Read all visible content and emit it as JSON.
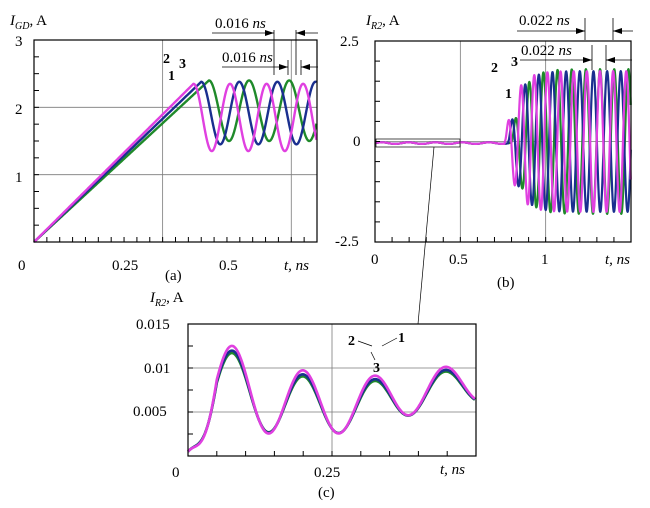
{
  "colors": {
    "c1": "#e040e0",
    "c2": "#1a2f8f",
    "c3": "#1f8a2a",
    "grid": "#7a7a7a",
    "axis": "#000000"
  },
  "chart_data": [
    {
      "id": "a",
      "type": "line",
      "panel_tag": "(a)",
      "ylabel_main": "I",
      "ylabel_sub": "GD",
      "ylabel_unit": ", A",
      "xlabel": "t, ns",
      "xlim": [
        0,
        0.55
      ],
      "ylim": [
        0,
        3
      ],
      "xticks": [
        "0",
        "0.25",
        "0.5"
      ],
      "yticks": [
        "1",
        "2",
        "3"
      ],
      "curve_labels": [
        "1",
        "2",
        "3"
      ],
      "annotations": [
        {
          "value": "0.016",
          "unit": "ns"
        },
        {
          "value": "0.016",
          "unit": "ns"
        }
      ],
      "series": [
        {
          "label": "1",
          "rise_end": 0.31,
          "peak": 2.35,
          "base": 1.35,
          "period": 0.071,
          "color_key": "c1"
        },
        {
          "label": "2",
          "rise_end": 0.325,
          "peak": 2.38,
          "base": 1.45,
          "period": 0.074,
          "color_key": "c2"
        },
        {
          "label": "3",
          "rise_end": 0.34,
          "peak": 2.4,
          "base": 1.5,
          "period": 0.078,
          "color_key": "c3"
        }
      ]
    },
    {
      "id": "b",
      "type": "line",
      "panel_tag": "(b)",
      "ylabel_main": "I",
      "ylabel_sub": "R2",
      "ylabel_unit": ", A",
      "xlabel": "t, ns",
      "xlim": [
        0,
        1.5
      ],
      "ylim": [
        -2.5,
        2.5
      ],
      "xticks": [
        "0",
        "0.5",
        "1"
      ],
      "yticks": [
        "2.5",
        "0",
        "-2.5"
      ],
      "curve_labels": [
        "1",
        "2",
        "3"
      ],
      "annotations": [
        {
          "value": "0.022",
          "unit": "ns"
        },
        {
          "value": "0.022",
          "unit": "ns"
        }
      ],
      "series": [
        {
          "label": "1",
          "onset": 0.76,
          "amplitude": 1.75,
          "period": 0.077,
          "color_key": "c1"
        },
        {
          "label": "2",
          "onset": 0.78,
          "amplitude": 1.75,
          "period": 0.08,
          "color_key": "c2"
        },
        {
          "label": "3",
          "onset": 0.8,
          "amplitude": 1.8,
          "period": 0.083,
          "color_key": "c3"
        }
      ]
    },
    {
      "id": "c",
      "type": "line",
      "panel_tag": "(c)",
      "ylabel_main": "I",
      "ylabel_sub": "R2",
      "ylabel_unit": ", A",
      "xlabel": "t, ns",
      "xlim": [
        0,
        0.5
      ],
      "ylim": [
        0,
        0.015
      ],
      "xticks": [
        "0",
        "0.25"
      ],
      "yticks": [
        "0.015",
        "0.01",
        "0.005"
      ],
      "curve_labels": [
        "2",
        "1",
        "3"
      ],
      "series": [
        {
          "label": "1",
          "mean": 0.0082,
          "amplitude": 0.0057,
          "decay": 0.42,
          "period": 0.123,
          "color_key": "c1"
        },
        {
          "label": "2",
          "mean": 0.008,
          "amplitude": 0.0053,
          "decay": 0.42,
          "period": 0.123,
          "color_key": "c2"
        },
        {
          "label": "3",
          "mean": 0.0079,
          "amplitude": 0.0051,
          "decay": 0.42,
          "period": 0.123,
          "color_key": "c3"
        }
      ]
    }
  ]
}
